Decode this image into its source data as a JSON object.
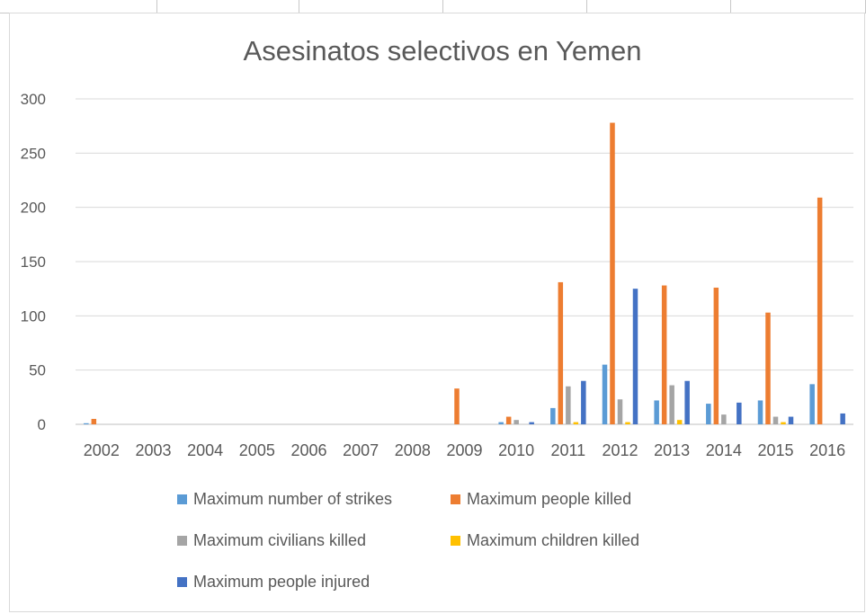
{
  "chart_data": {
    "type": "bar",
    "title": "Asesinatos selectivos en Yemen",
    "xlabel": "",
    "ylabel": "",
    "ylim": [
      0,
      300
    ],
    "yticks": [
      0,
      50,
      100,
      150,
      200,
      250,
      300
    ],
    "grid": true,
    "legend_position": "bottom",
    "categories": [
      "2002",
      "2003",
      "2004",
      "2005",
      "2006",
      "2007",
      "2008",
      "2009",
      "2010",
      "2011",
      "2012",
      "2013",
      "2014",
      "2015",
      "2016"
    ],
    "series": [
      {
        "name": "Maximum number of strikes",
        "color": "#5b9bd5",
        "values": [
          1,
          0,
          0,
          0,
          0,
          0,
          0,
          0,
          2,
          15,
          55,
          22,
          19,
          22,
          37
        ]
      },
      {
        "name": "Maximum people killed",
        "color": "#ed7d31",
        "values": [
          5,
          0,
          0,
          0,
          0,
          0,
          0,
          33,
          7,
          131,
          278,
          128,
          126,
          103,
          209
        ]
      },
      {
        "name": "Maximum civilians killed",
        "color": "#a5a5a5",
        "values": [
          0,
          0,
          0,
          0,
          0,
          0,
          0,
          0,
          4,
          35,
          23,
          36,
          9,
          7,
          0
        ]
      },
      {
        "name": "Maximum children killed",
        "color": "#ffc000",
        "values": [
          0,
          0,
          0,
          0,
          0,
          0,
          0,
          0,
          0,
          2,
          2,
          4,
          0,
          2,
          0
        ]
      },
      {
        "name": "Maximum people injured",
        "color": "#4472c4",
        "values": [
          0,
          0,
          0,
          0,
          0,
          0,
          0,
          0,
          2,
          40,
          125,
          40,
          20,
          7,
          10
        ]
      }
    ]
  }
}
